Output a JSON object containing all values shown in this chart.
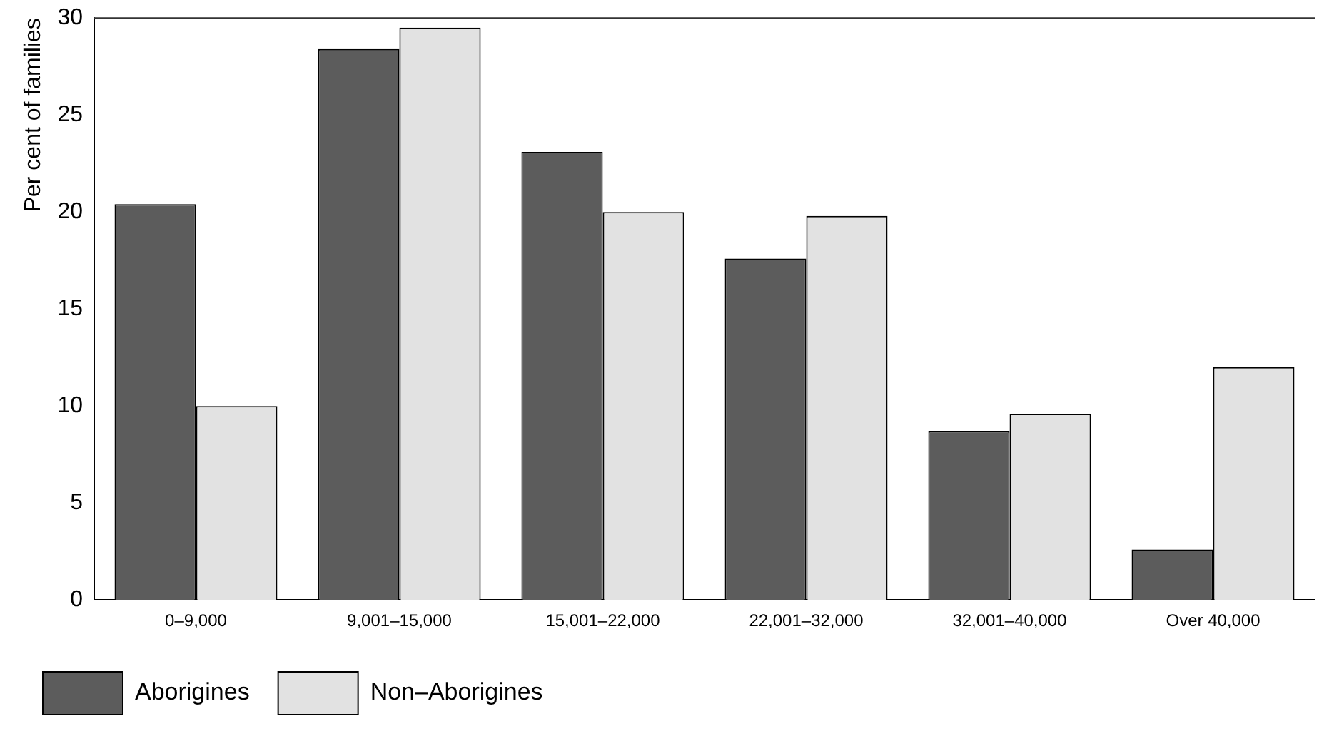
{
  "chart_data": {
    "type": "bar",
    "ylabel": "Per cent of families",
    "categories": [
      "0–9,000",
      "9,001–15,000",
      "15,001–22,000",
      "22,001–32,000",
      "32,001–40,000",
      "Over 40,000"
    ],
    "series": [
      {
        "name": "Aborigines",
        "color": "#5c5c5c",
        "values": [
          20.4,
          28.4,
          23.1,
          17.6,
          8.7,
          2.6
        ]
      },
      {
        "name": "Non–Aborigines",
        "color": "#e2e2e2",
        "values": [
          10.0,
          29.5,
          20.0,
          19.8,
          9.6,
          12.0
        ]
      }
    ],
    "ylim": [
      0,
      30
    ],
    "yticks": [
      0,
      5,
      10,
      15,
      20,
      25,
      30
    ],
    "grid": false,
    "legend": "bottom left"
  }
}
